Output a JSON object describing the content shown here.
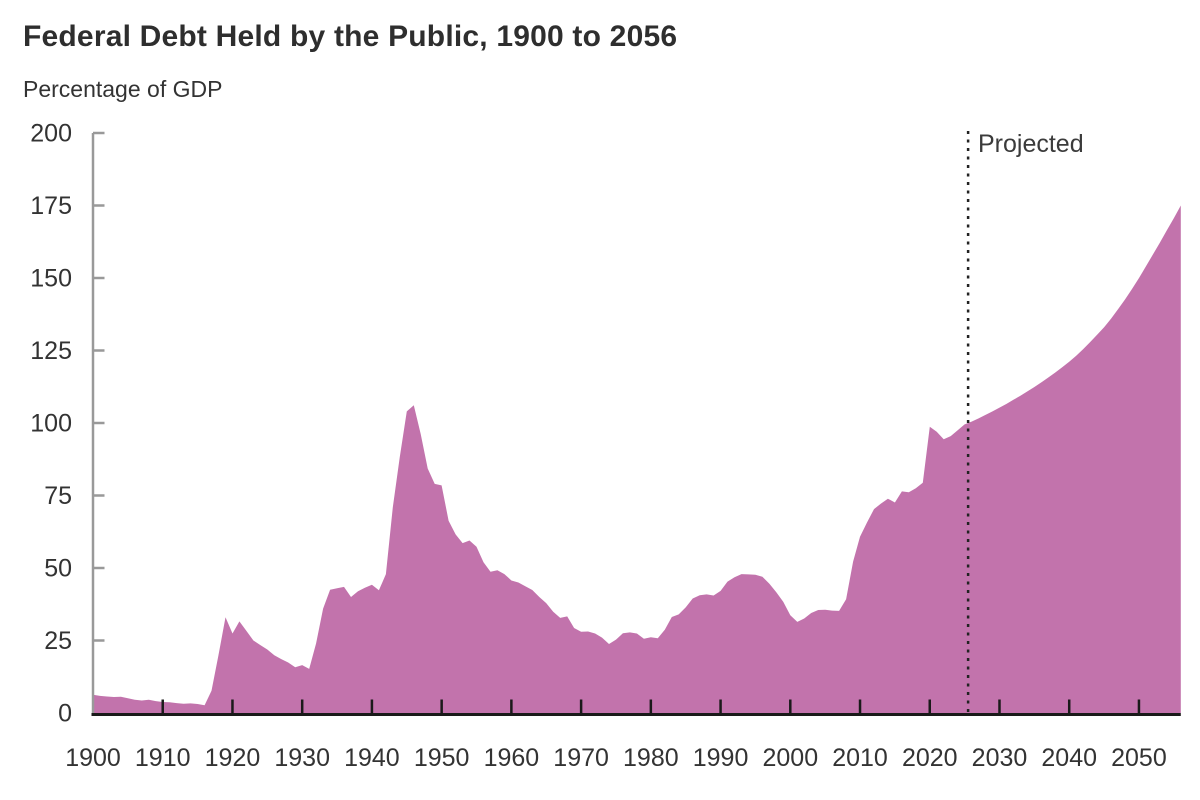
{
  "title": "Federal Debt Held by the Public, 1900 to 2056",
  "subtitle": "Percentage of GDP",
  "projected_label": "Projected",
  "colors": {
    "area_fill": "#C273AC",
    "y_axis": "#999999",
    "x_axis": "#1A1A1A",
    "tick_dark": "#1A1A1A",
    "text": "#333333",
    "projection_line": "#222222"
  },
  "chart_data": {
    "type": "area",
    "title": "Federal Debt Held by the Public, 1900 to 2056",
    "xlabel": "",
    "ylabel": "Percentage of GDP",
    "xlim": [
      1900,
      2056
    ],
    "ylim": [
      0,
      200
    ],
    "x_ticks": [
      1900,
      1910,
      1920,
      1930,
      1940,
      1950,
      1960,
      1970,
      1980,
      1990,
      2000,
      2010,
      2020,
      2030,
      2040,
      2050
    ],
    "y_ticks": [
      0,
      25,
      50,
      75,
      100,
      125,
      150,
      175,
      200
    ],
    "grid": false,
    "legend": "none",
    "projection_start_year": 2025.5,
    "projection_annotation": "Projected",
    "series": [
      {
        "name": "Federal debt held by the public (% of GDP)",
        "points": [
          [
            1900,
            6.3
          ],
          [
            1901,
            5.9
          ],
          [
            1902,
            5.7
          ],
          [
            1903,
            5.5
          ],
          [
            1904,
            5.6
          ],
          [
            1905,
            5.1
          ],
          [
            1906,
            4.6
          ],
          [
            1907,
            4.3
          ],
          [
            1908,
            4.6
          ],
          [
            1909,
            4.1
          ],
          [
            1910,
            3.8
          ],
          [
            1911,
            3.7
          ],
          [
            1912,
            3.4
          ],
          [
            1913,
            3.2
          ],
          [
            1914,
            3.3
          ],
          [
            1915,
            3.1
          ],
          [
            1916,
            2.7
          ],
          [
            1917,
            7.7
          ],
          [
            1918,
            20.0
          ],
          [
            1919,
            33.0
          ],
          [
            1920,
            27.4
          ],
          [
            1921,
            31.6
          ],
          [
            1922,
            28.3
          ],
          [
            1923,
            25.0
          ],
          [
            1924,
            23.4
          ],
          [
            1925,
            21.9
          ],
          [
            1926,
            19.9
          ],
          [
            1927,
            18.6
          ],
          [
            1928,
            17.4
          ],
          [
            1929,
            15.8
          ],
          [
            1930,
            16.5
          ],
          [
            1931,
            15.2
          ],
          [
            1932,
            24.0
          ],
          [
            1933,
            36.0
          ],
          [
            1934,
            42.5
          ],
          [
            1935,
            43.0
          ],
          [
            1936,
            43.5
          ],
          [
            1937,
            40.0
          ],
          [
            1938,
            42.0
          ],
          [
            1939,
            43.2
          ],
          [
            1940,
            44.2
          ],
          [
            1941,
            42.3
          ],
          [
            1942,
            47.9
          ],
          [
            1943,
            70.9
          ],
          [
            1944,
            88.3
          ],
          [
            1945,
            104.0
          ],
          [
            1946,
            106.1
          ],
          [
            1947,
            96.2
          ],
          [
            1948,
            84.3
          ],
          [
            1949,
            79.0
          ],
          [
            1950,
            78.5
          ],
          [
            1951,
            66.3
          ],
          [
            1952,
            61.6
          ],
          [
            1953,
            58.6
          ],
          [
            1954,
            59.5
          ],
          [
            1955,
            57.3
          ],
          [
            1956,
            52.0
          ],
          [
            1957,
            48.7
          ],
          [
            1958,
            49.2
          ],
          [
            1959,
            47.9
          ],
          [
            1960,
            45.7
          ],
          [
            1961,
            45.0
          ],
          [
            1962,
            43.7
          ],
          [
            1963,
            42.4
          ],
          [
            1964,
            40.0
          ],
          [
            1965,
            37.9
          ],
          [
            1966,
            34.9
          ],
          [
            1967,
            32.8
          ],
          [
            1968,
            33.3
          ],
          [
            1969,
            29.3
          ],
          [
            1970,
            28.0
          ],
          [
            1971,
            28.1
          ],
          [
            1972,
            27.4
          ],
          [
            1973,
            26.0
          ],
          [
            1974,
            23.8
          ],
          [
            1975,
            25.3
          ],
          [
            1976,
            27.5
          ],
          [
            1977,
            27.8
          ],
          [
            1978,
            27.4
          ],
          [
            1979,
            25.6
          ],
          [
            1980,
            26.1
          ],
          [
            1981,
            25.8
          ],
          [
            1982,
            28.7
          ],
          [
            1983,
            33.1
          ],
          [
            1984,
            34.0
          ],
          [
            1985,
            36.4
          ],
          [
            1986,
            39.5
          ],
          [
            1987,
            40.6
          ],
          [
            1988,
            40.9
          ],
          [
            1989,
            40.5
          ],
          [
            1990,
            42.1
          ],
          [
            1991,
            45.3
          ],
          [
            1992,
            46.8
          ],
          [
            1993,
            47.9
          ],
          [
            1994,
            47.8
          ],
          [
            1995,
            47.7
          ],
          [
            1996,
            47.0
          ],
          [
            1997,
            44.6
          ],
          [
            1998,
            41.6
          ],
          [
            1999,
            38.3
          ],
          [
            2000,
            33.7
          ],
          [
            2001,
            31.4
          ],
          [
            2002,
            32.6
          ],
          [
            2003,
            34.5
          ],
          [
            2004,
            35.5
          ],
          [
            2005,
            35.6
          ],
          [
            2006,
            35.3
          ],
          [
            2007,
            35.2
          ],
          [
            2008,
            39.2
          ],
          [
            2009,
            52.2
          ],
          [
            2010,
            60.8
          ],
          [
            2011,
            65.7
          ],
          [
            2012,
            70.3
          ],
          [
            2013,
            72.2
          ],
          [
            2014,
            73.9
          ],
          [
            2015,
            72.6
          ],
          [
            2016,
            76.4
          ],
          [
            2017,
            76.1
          ],
          [
            2018,
            77.5
          ],
          [
            2019,
            79.4
          ],
          [
            2020,
            98.7
          ],
          [
            2021,
            97.0
          ],
          [
            2022,
            94.4
          ],
          [
            2023,
            95.5
          ],
          [
            2024,
            97.5
          ],
          [
            2025,
            99.5
          ],
          [
            2026,
            100.5
          ],
          [
            2027,
            101.6
          ],
          [
            2028,
            102.8
          ],
          [
            2029,
            104.0
          ],
          [
            2030,
            105.3
          ],
          [
            2031,
            106.6
          ],
          [
            2032,
            108.0
          ],
          [
            2033,
            109.4
          ],
          [
            2034,
            110.9
          ],
          [
            2035,
            112.4
          ],
          [
            2036,
            114.0
          ],
          [
            2037,
            115.7
          ],
          [
            2038,
            117.4
          ],
          [
            2039,
            119.2
          ],
          [
            2040,
            121.1
          ],
          [
            2041,
            123.2
          ],
          [
            2042,
            125.5
          ],
          [
            2043,
            127.9
          ],
          [
            2044,
            130.4
          ],
          [
            2045,
            133.0
          ],
          [
            2046,
            136.0
          ],
          [
            2047,
            139.2
          ],
          [
            2048,
            142.6
          ],
          [
            2049,
            146.2
          ],
          [
            2050,
            150.0
          ],
          [
            2051,
            154.0
          ],
          [
            2052,
            158.1
          ],
          [
            2053,
            162.2
          ],
          [
            2054,
            166.4
          ],
          [
            2055,
            170.6
          ],
          [
            2056,
            175.0
          ]
        ]
      }
    ]
  }
}
